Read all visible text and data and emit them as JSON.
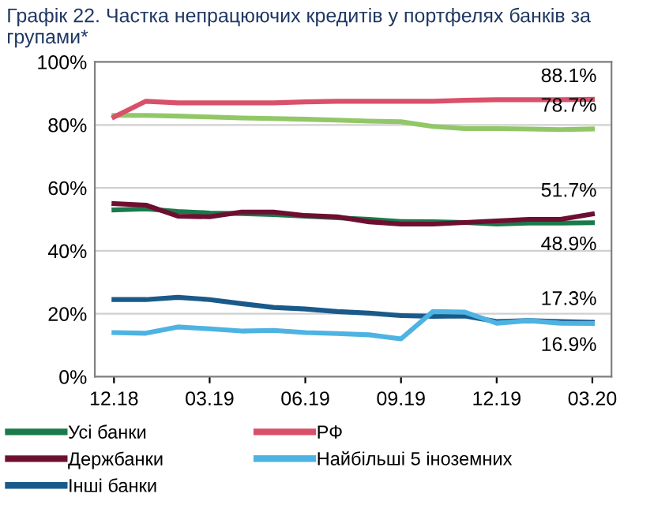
{
  "chart_data": {
    "type": "line",
    "title": "Графік 22. Частка непрацюючих кредитів у портфелях банків за групами*",
    "categories": [
      "12.18",
      null,
      null,
      "03.19",
      null,
      null,
      "06.19",
      null,
      null,
      "09.19",
      null,
      null,
      "12.19",
      null,
      null,
      "03.20"
    ],
    "series": [
      {
        "name": "Усі банки",
        "color": "#1a7a4a",
        "values": [
          53,
          53.3,
          52.5,
          52,
          51.8,
          51.5,
          51,
          50.5,
          50,
          49.3,
          49.2,
          49,
          48.5,
          48.8,
          48.8,
          48.9
        ],
        "value_labels": [
          null,
          null,
          null,
          null,
          null,
          null,
          null,
          null,
          null,
          null,
          null,
          null,
          null,
          null,
          null,
          "48.9%"
        ]
      },
      {
        "color": "#92c768",
        "values": [
          83,
          83,
          82.8,
          82.5,
          82.2,
          82,
          81.8,
          81.5,
          81.2,
          81,
          79.5,
          78.8,
          78.8,
          78.7,
          78.5,
          78.7
        ],
        "value_labels": [
          null,
          null,
          null,
          null,
          null,
          null,
          null,
          null,
          null,
          null,
          null,
          null,
          null,
          null,
          null,
          "78.7%"
        ]
      },
      {
        "name": "Держбанки",
        "color": "#6e0f32",
        "values": [
          55,
          54.5,
          51,
          50.8,
          52.3,
          52.3,
          51.2,
          50.8,
          49.2,
          48.5,
          48.5,
          49,
          49.5,
          50,
          50,
          51.7
        ],
        "value_labels": [
          null,
          null,
          null,
          null,
          null,
          null,
          null,
          null,
          null,
          null,
          null,
          null,
          null,
          null,
          null,
          "51.7%"
        ]
      },
      {
        "name": "РФ",
        "color": "#d9506a",
        "values": [
          82.5,
          87.5,
          87,
          87,
          87,
          87,
          87.3,
          87.5,
          87.5,
          87.5,
          87.5,
          87.8,
          88,
          88,
          88,
          88.1
        ],
        "value_labels": [
          null,
          null,
          null,
          null,
          null,
          null,
          null,
          null,
          null,
          null,
          null,
          null,
          null,
          null,
          null,
          "88.1%"
        ]
      },
      {
        "name": "Інші банки",
        "color": "#1a5a8a",
        "values": [
          24.5,
          24.5,
          25.2,
          24.5,
          23.2,
          22,
          21.5,
          20.7,
          20.2,
          19.4,
          19.2,
          19.3,
          17.5,
          17.8,
          17.5,
          17.3
        ],
        "value_labels": [
          null,
          null,
          null,
          null,
          null,
          null,
          null,
          null,
          null,
          null,
          null,
          null,
          null,
          null,
          null,
          "17.3%"
        ]
      },
      {
        "name": "Найбільші 5 іноземних",
        "color": "#4eb3e3",
        "values": [
          14,
          13.8,
          15.8,
          15.2,
          14.5,
          14.7,
          14,
          13.7,
          13.3,
          12,
          20.7,
          20.5,
          17,
          17.8,
          17,
          16.9
        ],
        "value_labels": [
          null,
          null,
          null,
          null,
          null,
          null,
          null,
          null,
          null,
          null,
          null,
          null,
          null,
          null,
          null,
          "16.9%"
        ]
      }
    ],
    "ylim": [
      0,
      100
    ],
    "yticks": [
      {
        "value": 0,
        "label": "0%"
      },
      {
        "value": 20,
        "label": "20%"
      },
      {
        "value": 40,
        "label": "40%"
      },
      {
        "value": 60,
        "label": "60%"
      },
      {
        "value": 80,
        "label": "80%"
      },
      {
        "value": 100,
        "label": "100%"
      }
    ],
    "grid": "y",
    "legend": "bottom",
    "marker": "none",
    "line_style": "solid"
  }
}
